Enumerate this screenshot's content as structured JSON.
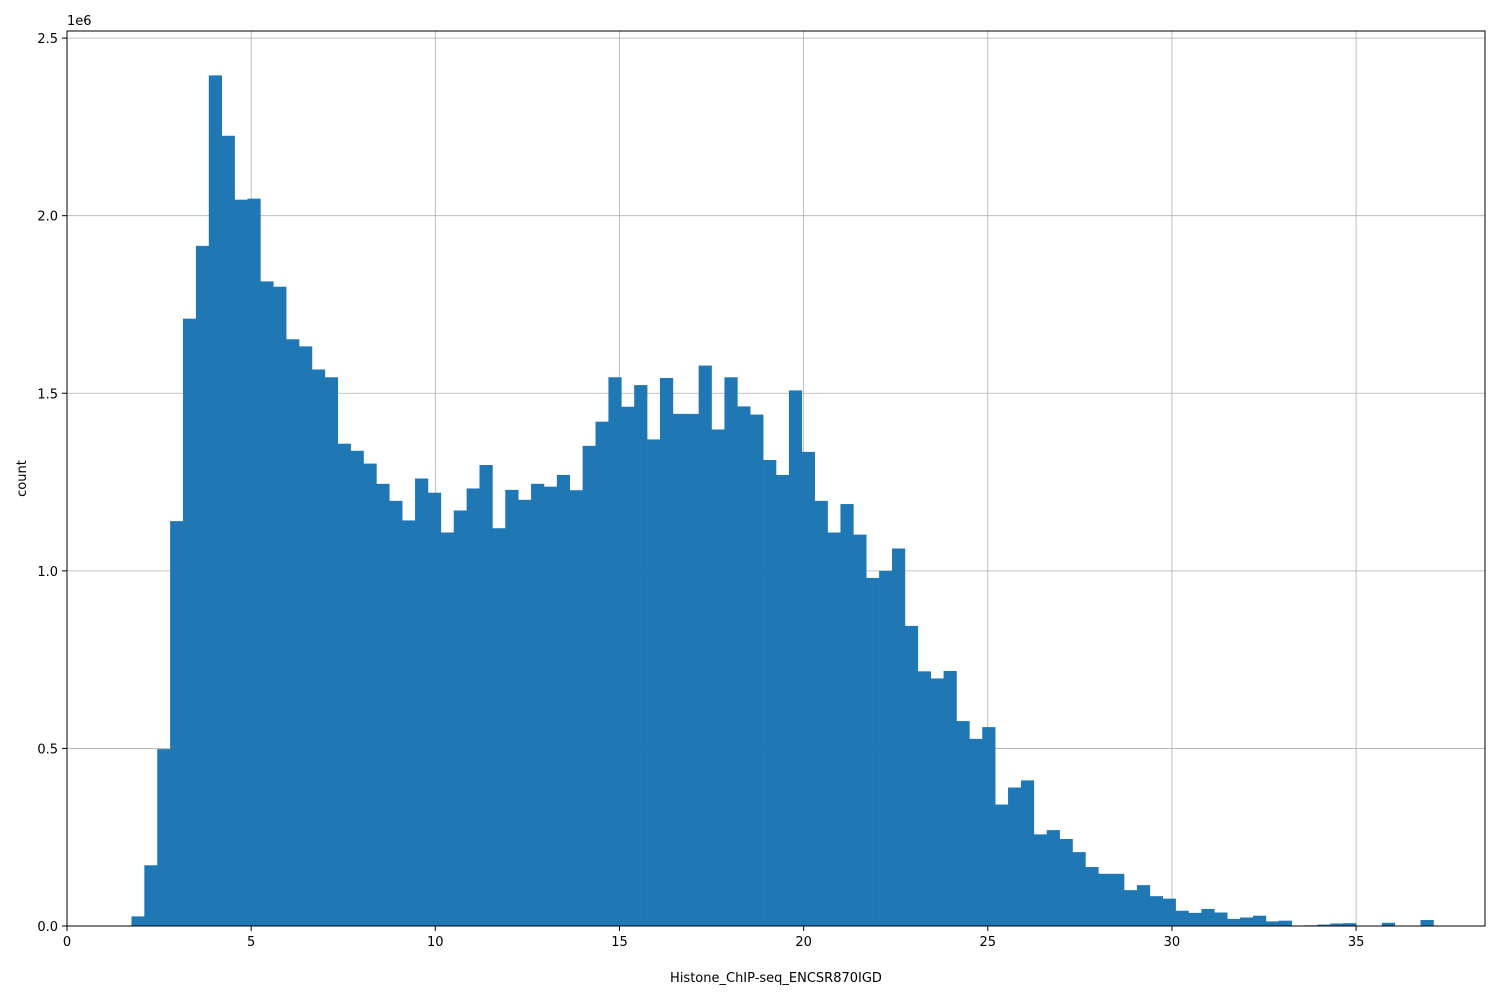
{
  "chart_data": {
    "type": "bar",
    "subtype": "histogram",
    "title": "",
    "xlabel": "Histone_ChIP-seq_ENCSR870IGD",
    "ylabel": "count",
    "y_offset_label": "1e6",
    "xlim": [
      0,
      38.5
    ],
    "ylim": [
      0,
      2.52
    ],
    "y_units": "1e6 counts",
    "grid": true,
    "x_ticks": [
      0,
      5,
      10,
      15,
      20,
      25,
      30,
      35
    ],
    "x_tick_labels": [
      "0",
      "5",
      "10",
      "15",
      "20",
      "25",
      "30",
      "35"
    ],
    "y_ticks": [
      0,
      0.5,
      1.0,
      1.5,
      2.0,
      2.5
    ],
    "y_tick_labels": [
      "0.0",
      "0.5",
      "1.0",
      "1.5",
      "2.0",
      "2.5"
    ],
    "bar_color": "#1f77b4",
    "bin_start": 1.75,
    "bin_width": 0.35,
    "values": [
      0.027,
      0.171,
      0.498,
      1.14,
      1.71,
      1.915,
      2.395,
      2.225,
      2.045,
      2.048,
      1.815,
      1.8,
      1.652,
      1.632,
      1.567,
      1.545,
      1.358,
      1.338,
      1.302,
      1.245,
      1.197,
      1.142,
      1.26,
      1.22,
      1.108,
      1.17,
      1.232,
      1.298,
      1.12,
      1.228,
      1.2,
      1.245,
      1.237,
      1.27,
      1.227,
      1.352,
      1.42,
      1.545,
      1.462,
      1.523,
      1.37,
      1.543,
      1.442,
      1.442,
      1.578,
      1.398,
      1.545,
      1.463,
      1.44,
      1.312,
      1.27,
      1.508,
      1.335,
      1.197,
      1.108,
      1.188,
      1.102,
      0.98,
      1.0,
      1.063,
      0.845,
      0.717,
      0.697,
      0.718,
      0.577,
      0.527,
      0.56,
      0.342,
      0.39,
      0.41,
      0.258,
      0.27,
      0.245,
      0.208,
      0.166,
      0.147,
      0.147,
      0.101,
      0.115,
      0.084,
      0.077,
      0.043,
      0.037,
      0.048,
      0.038,
      0.02,
      0.024,
      0.029,
      0.013,
      0.015,
      0.0015,
      0.002,
      0.004,
      0.007,
      0.008,
      0.0,
      0.0,
      0.009,
      0.0,
      0.0,
      0.017
    ]
  }
}
